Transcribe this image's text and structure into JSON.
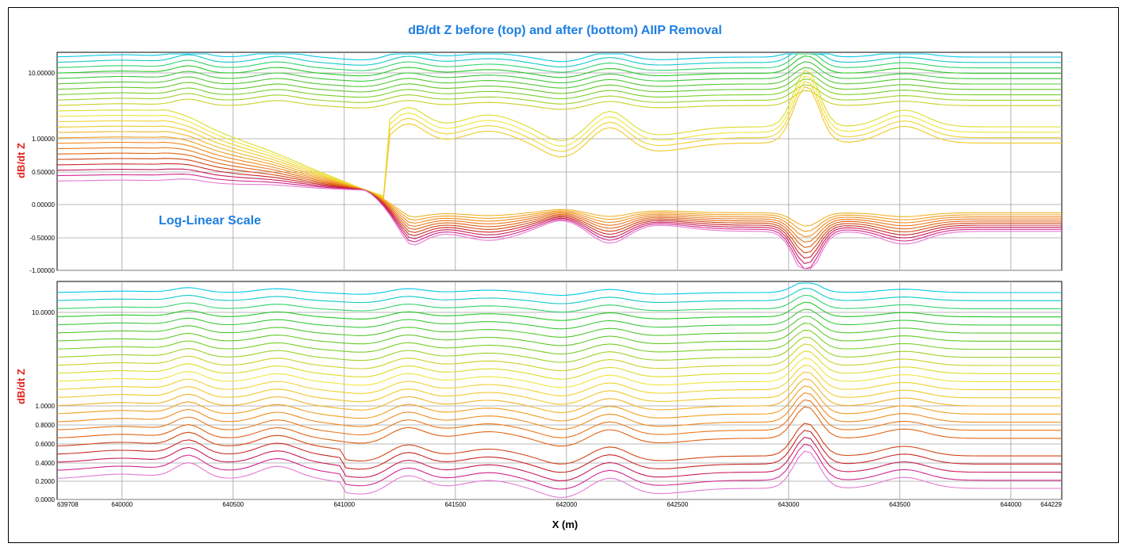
{
  "title": "dB/dt Z before (top) and after (bottom) AIIP Removal",
  "annotation": "Log-Linear Scale",
  "chart_data": {
    "type": "line",
    "x_label": "X (m)",
    "x_range": [
      639708,
      644229
    ],
    "x_ticks": [
      "639708",
      "640000",
      "640500",
      "641000",
      "641500",
      "642000",
      "642500",
      "643000",
      "643500",
      "644000",
      "644229"
    ],
    "gridlines": true,
    "panels": [
      {
        "id": "top",
        "ylabel": "dB/dt Z",
        "yscale": "log-linear",
        "y_ticks": [
          "10.00000",
          "1.00000",
          "0.50000",
          "0.00000",
          "-0.50000",
          "-1.00000"
        ],
        "y_range": [
          -1.0,
          20
        ],
        "series_count": 24
      },
      {
        "id": "bottom",
        "ylabel": "dB/dt Z",
        "yscale": "log-linear",
        "y_ticks": [
          "10.0000",
          "1.0000",
          "0.8000",
          "0.6000",
          "0.4000",
          "0.2000",
          "0.0000"
        ],
        "y_range": [
          0.0,
          20
        ],
        "series_count": 24
      }
    ],
    "series_colors": [
      "#00c8e6",
      "#14c8c8",
      "#32d26e",
      "#28c828",
      "#3cc83c",
      "#50c832",
      "#64c828",
      "#78d028",
      "#a0d028",
      "#c8d228",
      "#dcdc28",
      "#f0e63c",
      "#f0d232",
      "#f0c828",
      "#f0b428",
      "#f0a01e",
      "#f08c1e",
      "#e8781e",
      "#e06414",
      "#d24614",
      "#c82828",
      "#c81e5a",
      "#d2288c",
      "#e678d2"
    ]
  }
}
